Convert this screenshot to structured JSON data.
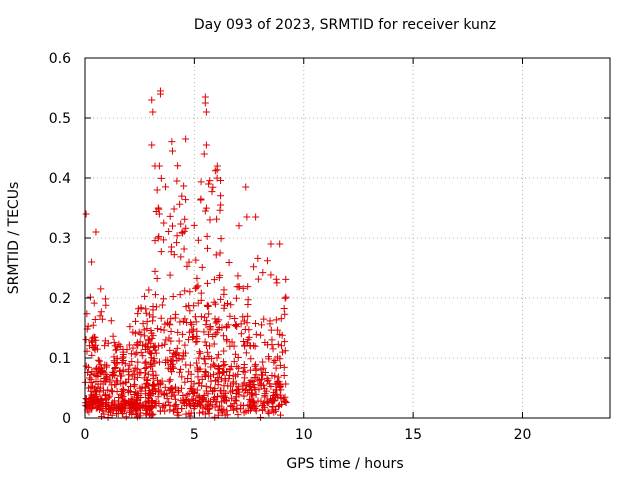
{
  "chart_data": {
    "type": "scatter",
    "title": "Day 093 of 2023, SRMTID for receiver kunz",
    "xlabel": "GPS time / hours",
    "ylabel": "SRMTID / TECUs",
    "xlim": [
      0,
      24
    ],
    "ylim": [
      0,
      0.6
    ],
    "xticks": [
      "0",
      "5",
      "10",
      "15",
      "20"
    ],
    "yticks": [
      "0",
      "0.1",
      "0.2",
      "0.3",
      "0.4",
      "0.5",
      "0.6"
    ],
    "grid": true,
    "marker": "+",
    "color": "#e00000",
    "clusters": [
      {
        "x": [
          0.0,
          1.0
        ],
        "y": [
          0.0,
          0.26
        ],
        "n": 150
      },
      {
        "x": [
          1.0,
          2.2
        ],
        "y": [
          0.0,
          0.22
        ],
        "n": 150
      },
      {
        "x": [
          2.2,
          3.2
        ],
        "y": [
          0.0,
          0.26
        ],
        "n": 150
      },
      {
        "x": [
          3.0,
          4.3
        ],
        "y": [
          0.0,
          0.55
        ],
        "n": 150
      },
      {
        "x": [
          4.3,
          5.2
        ],
        "y": [
          0.0,
          0.47
        ],
        "n": 110
      },
      {
        "x": [
          5.2,
          6.2
        ],
        "y": [
          0.0,
          0.54
        ],
        "n": 140
      },
      {
        "x": [
          6.2,
          7.5
        ],
        "y": [
          0.0,
          0.39
        ],
        "n": 140
      },
      {
        "x": [
          7.5,
          9.2
        ],
        "y": [
          0.0,
          0.34
        ],
        "n": 180
      }
    ],
    "points": [
      {
        "x": 0.05,
        "y": 0.34
      },
      {
        "x": 0.5,
        "y": 0.31
      },
      {
        "x": 0.3,
        "y": 0.26
      },
      {
        "x": 3.05,
        "y": 0.53
      },
      {
        "x": 3.1,
        "y": 0.51
      },
      {
        "x": 3.45,
        "y": 0.545
      },
      {
        "x": 3.45,
        "y": 0.54
      },
      {
        "x": 5.5,
        "y": 0.535
      },
      {
        "x": 5.5,
        "y": 0.525
      },
      {
        "x": 5.55,
        "y": 0.51
      },
      {
        "x": 4.6,
        "y": 0.465
      },
      {
        "x": 3.05,
        "y": 0.455
      },
      {
        "x": 5.55,
        "y": 0.455
      },
      {
        "x": 5.45,
        "y": 0.44
      },
      {
        "x": 4.0,
        "y": 0.445
      },
      {
        "x": 3.2,
        "y": 0.42
      },
      {
        "x": 3.4,
        "y": 0.42
      },
      {
        "x": 6.05,
        "y": 0.42
      },
      {
        "x": 7.35,
        "y": 0.385
      },
      {
        "x": 4.2,
        "y": 0.395
      },
      {
        "x": 5.65,
        "y": 0.39
      },
      {
        "x": 7.8,
        "y": 0.335
      },
      {
        "x": 7.4,
        "y": 0.335
      },
      {
        "x": 3.3,
        "y": 0.38
      },
      {
        "x": 3.35,
        "y": 0.35
      },
      {
        "x": 3.4,
        "y": 0.34
      },
      {
        "x": 3.6,
        "y": 0.325
      },
      {
        "x": 4.0,
        "y": 0.32
      },
      {
        "x": 5.3,
        "y": 0.365
      },
      {
        "x": 5.5,
        "y": 0.345
      },
      {
        "x": 6.2,
        "y": 0.355
      },
      {
        "x": 8.5,
        "y": 0.29
      },
      {
        "x": 8.9,
        "y": 0.29
      }
    ]
  }
}
